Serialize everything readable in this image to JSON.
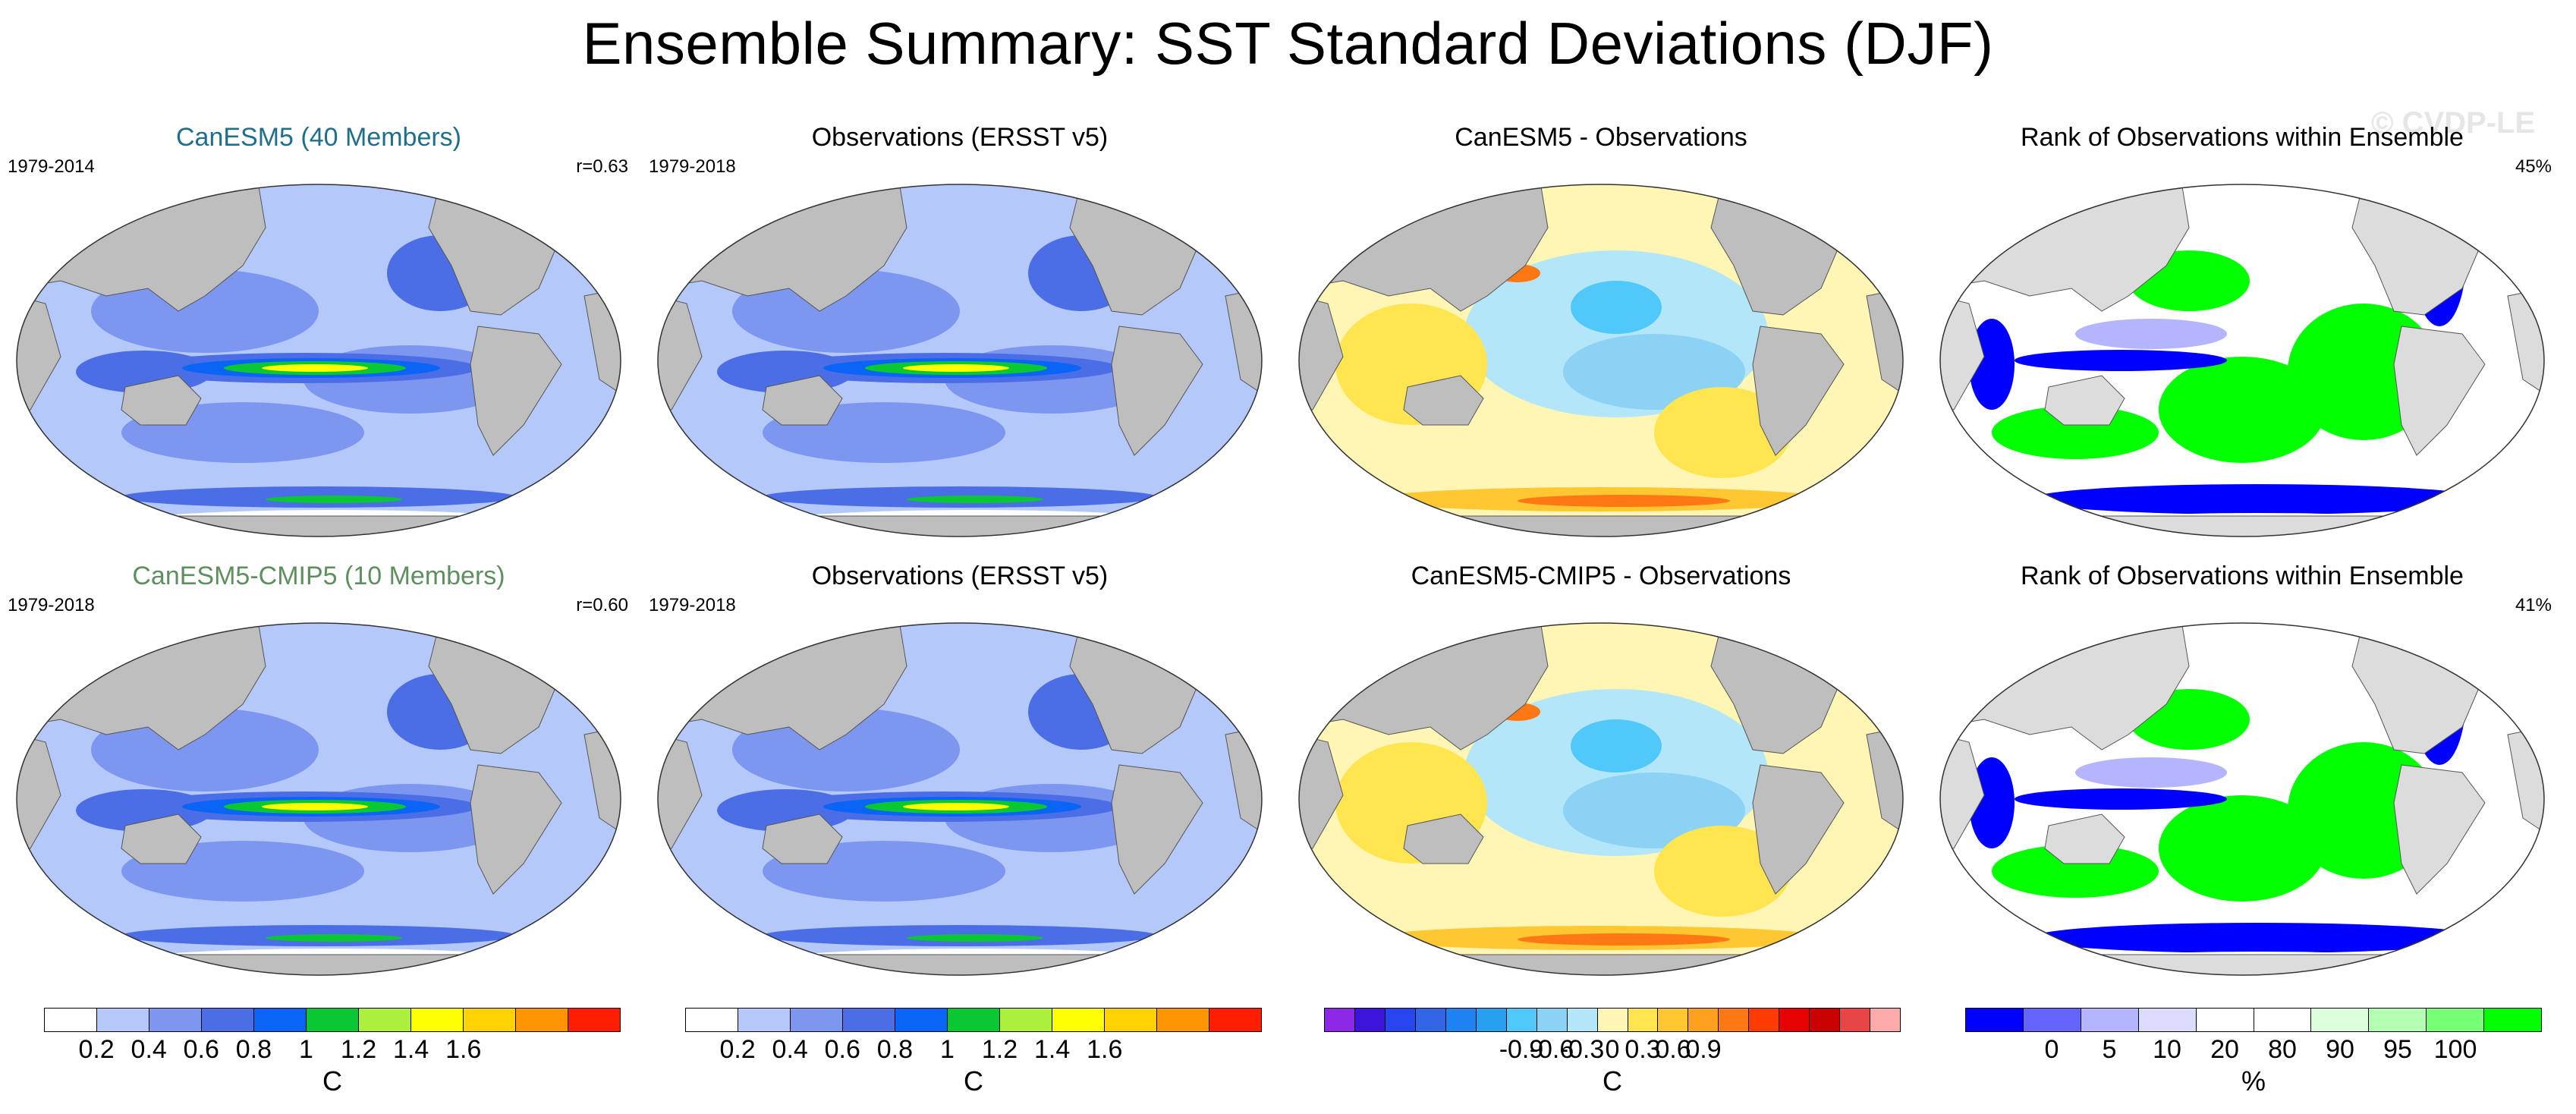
{
  "title": "Ensemble Summary: SST Standard Deviations (DJF)",
  "watermark": "© CVDP-LE",
  "panels": {
    "p1": {
      "title": "CanESM5 (40 Members)",
      "title_color": "#1f6f8b",
      "left": "1979-2014",
      "right": "r=0.63"
    },
    "p2": {
      "title": "Observations (ERSST v5)",
      "title_color": "#000000",
      "left": "1979-2018",
      "right": ""
    },
    "p3": {
      "title": "CanESM5 - Observations",
      "title_color": "#000000",
      "left": "",
      "right": ""
    },
    "p4": {
      "title": "Rank of Observations within Ensemble",
      "title_color": "#000000",
      "left": "",
      "right": "45%"
    },
    "p5": {
      "title": "CanESM5-CMIP5 (10 Members)",
      "title_color": "#5f8f5f",
      "left": "1979-2018",
      "right": "r=0.60"
    },
    "p6": {
      "title": "Observations (ERSST v5)",
      "title_color": "#000000",
      "left": "1979-2018",
      "right": ""
    },
    "p7": {
      "title": "CanESM5-CMIP5 - Observations",
      "title_color": "#000000",
      "left": "",
      "right": ""
    },
    "p8": {
      "title": "Rank of Observations within Ensemble",
      "title_color": "#000000",
      "left": "",
      "right": "41%"
    }
  },
  "chart_data": [
    {
      "type": "heatmap",
      "title": "CanESM5 (40 Members)",
      "period": "1979-2014",
      "pattern_correlation": 0.63,
      "units": "C",
      "levels": [
        0.2,
        0.4,
        0.6,
        0.8,
        1,
        1.2,
        1.4,
        1.6
      ]
    },
    {
      "type": "heatmap",
      "title": "Observations (ERSST v5)",
      "period": "1979-2018",
      "units": "C",
      "levels": [
        0.2,
        0.4,
        0.6,
        0.8,
        1,
        1.2,
        1.4,
        1.6
      ]
    },
    {
      "type": "heatmap",
      "title": "CanESM5 - Observations",
      "units": "C",
      "levels": [
        -0.9,
        -0.6,
        -0.3,
        0,
        0.3,
        0.6,
        0.9
      ]
    },
    {
      "type": "heatmap",
      "title": "Rank of Observations within Ensemble",
      "percent": "45%",
      "units": "%",
      "levels": [
        0,
        5,
        10,
        20,
        80,
        90,
        95,
        100
      ]
    },
    {
      "type": "heatmap",
      "title": "CanESM5-CMIP5 (10 Members)",
      "period": "1979-2018",
      "pattern_correlation": 0.6,
      "units": "C",
      "levels": [
        0.2,
        0.4,
        0.6,
        0.8,
        1,
        1.2,
        1.4,
        1.6
      ]
    },
    {
      "type": "heatmap",
      "title": "Observations (ERSST v5)",
      "period": "1979-2018",
      "units": "C",
      "levels": [
        0.2,
        0.4,
        0.6,
        0.8,
        1,
        1.2,
        1.4,
        1.6
      ]
    },
    {
      "type": "heatmap",
      "title": "CanESM5-CMIP5 - Observations",
      "units": "C",
      "levels": [
        -0.9,
        -0.6,
        -0.3,
        0,
        0.3,
        0.6,
        0.9
      ]
    },
    {
      "type": "heatmap",
      "title": "Rank of Observations within Ensemble",
      "percent": "41%",
      "units": "%",
      "levels": [
        0,
        5,
        10,
        20,
        80,
        90,
        95,
        100
      ]
    }
  ],
  "colorbars": {
    "sd1": {
      "unit": "C",
      "ticks": [
        "0.2",
        "0.4",
        "0.6",
        "0.8",
        "1",
        "1.2",
        "1.4",
        "1.6"
      ],
      "colors": [
        "#ffffff",
        "#b4c8fa",
        "#7d96f0",
        "#4b6ee6",
        "#0a64f5",
        "#0ac832",
        "#aaf03c",
        "#ffff00",
        "#ffd200",
        "#ff9600",
        "#ff1e00"
      ]
    },
    "sd2": {
      "unit": "C",
      "ticks": [
        "0.2",
        "0.4",
        "0.6",
        "0.8",
        "1",
        "1.2",
        "1.4",
        "1.6"
      ],
      "colors": [
        "#ffffff",
        "#b4c8fa",
        "#7d96f0",
        "#4b6ee6",
        "#0a64f5",
        "#0ac832",
        "#aaf03c",
        "#ffff00",
        "#ffd200",
        "#ff9600",
        "#ff1e00"
      ]
    },
    "diff": {
      "unit": "C",
      "ticks": [
        "-0.9",
        "-0.6",
        "-0.3",
        "0",
        "0.3",
        "0.6",
        "0.9"
      ],
      "colors": [
        "#8c28e6",
        "#3c14dc",
        "#2846f0",
        "#3264e6",
        "#1e82f0",
        "#28a0f0",
        "#50c8fa",
        "#8cd2f5",
        "#b4e6fa",
        "#fff5b4",
        "#ffe650",
        "#ffc832",
        "#ffa01e",
        "#ff7814",
        "#ff3c00",
        "#e60000",
        "#c80000",
        "#e64646",
        "#ffaaaa"
      ]
    },
    "rank": {
      "unit": "%",
      "ticks": [
        "0",
        "5",
        "10",
        "20",
        "80",
        "90",
        "95",
        "100"
      ],
      "colors": [
        "#0000ff",
        "#6464ff",
        "#b4b4ff",
        "#dcdcff",
        "#ffffff",
        "#ffffff",
        "#dcffdc",
        "#b4ffb4",
        "#78ff78",
        "#00ff00"
      ]
    }
  }
}
